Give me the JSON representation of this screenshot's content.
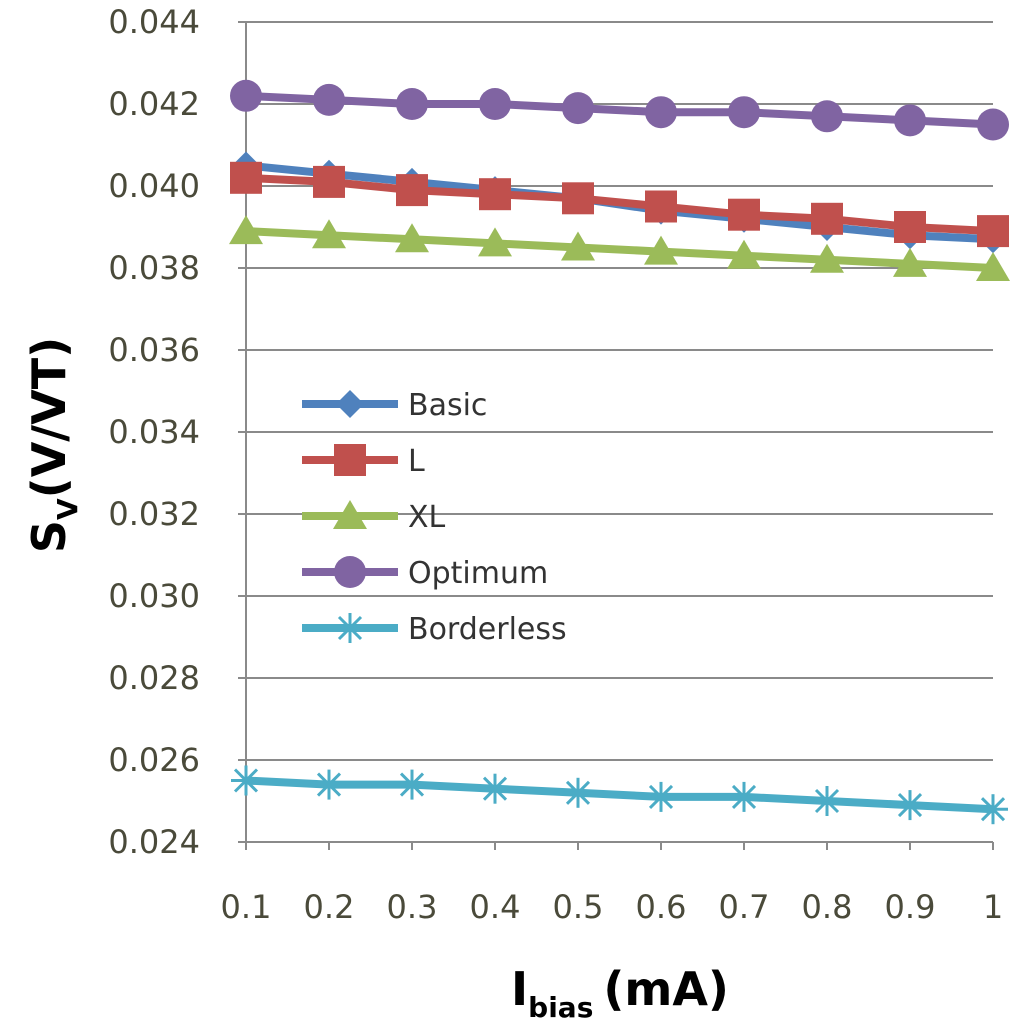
{
  "chart_data": {
    "type": "line",
    "xlabel": {
      "main": "I",
      "sub": "bias",
      "unit": "(mA)"
    },
    "ylabel": {
      "main": "S",
      "sub": "V",
      "unit": "(V/VT)"
    },
    "x": [
      0.1,
      0.2,
      0.3,
      0.4,
      0.5,
      0.6,
      0.7,
      0.8,
      0.9,
      1
    ],
    "x_tick_labels": [
      "0.1",
      "0.2",
      "0.3",
      "0.4",
      "0.5",
      "0.6",
      "0.7",
      "0.8",
      "0.9",
      "1"
    ],
    "ylim": [
      0.024,
      0.044
    ],
    "y_ticks": [
      0.024,
      0.026,
      0.028,
      0.03,
      0.032,
      0.034,
      0.036,
      0.038,
      0.04,
      0.042,
      0.044
    ],
    "y_tick_labels": [
      "0.024",
      "0.026",
      "0.028",
      "0.030",
      "0.032",
      "0.034",
      "0.036",
      "0.038",
      "0.040",
      "0.042",
      "0.044"
    ],
    "grid": "horizontal",
    "legend_position": "center-left",
    "series": [
      {
        "name": "Basic",
        "color": "#4f81bd",
        "marker": "diamond",
        "values": [
          0.0405,
          0.0403,
          0.0401,
          0.0399,
          0.0397,
          0.0394,
          0.0392,
          0.039,
          0.0388,
          0.0387
        ]
      },
      {
        "name": "L",
        "color": "#c0504d",
        "marker": "square",
        "values": [
          0.0402,
          0.0401,
          0.0399,
          0.0398,
          0.0397,
          0.0395,
          0.0393,
          0.0392,
          0.039,
          0.0389
        ]
      },
      {
        "name": "XL",
        "color": "#9bbb59",
        "marker": "triangle",
        "values": [
          0.0389,
          0.0388,
          0.0387,
          0.0386,
          0.0385,
          0.0384,
          0.0383,
          0.0382,
          0.0381,
          0.038
        ]
      },
      {
        "name": "Optimum",
        "color": "#8064a2",
        "marker": "circle",
        "values": [
          0.0422,
          0.0421,
          0.042,
          0.042,
          0.0419,
          0.0418,
          0.0418,
          0.0417,
          0.0416,
          0.0415
        ]
      },
      {
        "name": "Borderless",
        "color": "#4bacc6",
        "marker": "star",
        "values": [
          0.0255,
          0.0254,
          0.0254,
          0.0253,
          0.0252,
          0.0251,
          0.0251,
          0.025,
          0.0249,
          0.0248
        ]
      }
    ]
  }
}
